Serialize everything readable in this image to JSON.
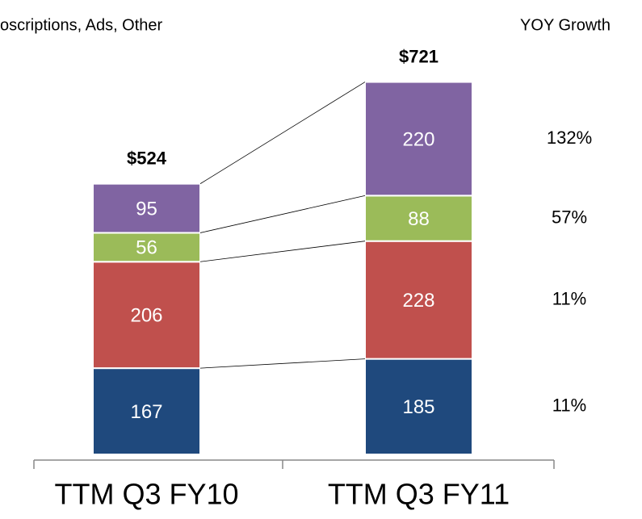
{
  "chart_data": {
    "type": "stacked_bar",
    "subtitle": "oscriptions, Ads, Other",
    "categories": [
      "TTM Q3 FY10",
      "TTM Q3 FY11"
    ],
    "series": [
      {
        "color": "#1f497d",
        "values": [
          167,
          185
        ]
      },
      {
        "color": "#c0504d",
        "values": [
          206,
          228
        ]
      },
      {
        "color": "#9bbb59",
        "values": [
          56,
          88
        ]
      },
      {
        "color": "#8064a2",
        "values": [
          95,
          220
        ]
      }
    ],
    "totals": [
      524,
      721
    ],
    "total_labels": [
      "$524",
      "$721"
    ],
    "growth_title": "YOY Growth",
    "growth": [
      11,
      11,
      57,
      132
    ],
    "growth_labels": [
      "11%",
      "11%",
      "57%",
      "132%"
    ]
  }
}
